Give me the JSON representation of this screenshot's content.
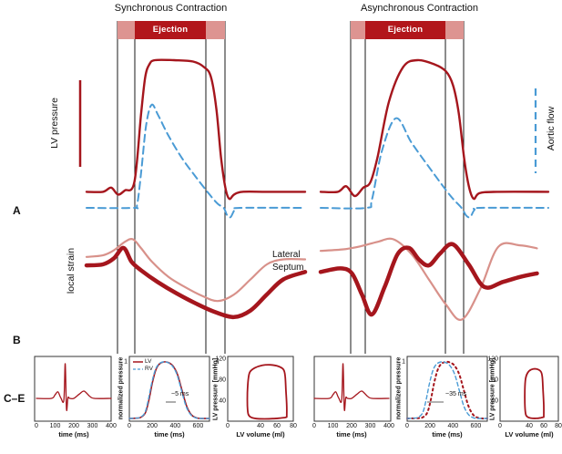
{
  "figure": {
    "panel_labels": {
      "a": "A",
      "b": "B",
      "ce": "C–E"
    },
    "columns": [
      {
        "title": "Synchronous Contraction",
        "ejection_label": "Ejection"
      },
      {
        "title": "Asynchronous Contraction",
        "ejection_label": "Ejection"
      }
    ],
    "left_axis_labels": {
      "lv_pressure": "LV pressure",
      "local_strain": "local strain"
    },
    "right_axis_label": "Aortic flow",
    "strain_region_labels": {
      "lateral": "Lateral",
      "septum": "Septum"
    },
    "colors": {
      "dark_red": "#a5161d",
      "pink": "#d8918a",
      "blue": "#4a9bd5",
      "ejection_dark": "#b2161b",
      "ejection_light": "#dd9491",
      "line_black": "#1a1a1a"
    }
  },
  "chart_data": [
    {
      "id": "sync_pressure_flow",
      "type": "line",
      "xlim": [
        0,
        800
      ],
      "ylim": [
        -0.15,
        1.1
      ],
      "timing_lines_ms": [
        113,
        177,
        437,
        507
      ],
      "series": [
        {
          "name": "LV pressure",
          "color": "#a5161d",
          "style": "solid",
          "x": [
            0,
            60,
            90,
            115,
            140,
            175,
            200,
            215,
            230,
            250,
            320,
            390,
            430,
            455,
            475,
            492,
            508,
            522,
            540,
            570,
            660,
            800
          ],
          "y": [
            0.05,
            0.05,
            0.08,
            0.03,
            0.06,
            0.12,
            0.62,
            0.88,
            0.97,
            1.0,
            1.0,
            0.99,
            0.95,
            0.88,
            0.65,
            0.3,
            0.08,
            0.0,
            0.03,
            0.05,
            0.05,
            0.05
          ]
        },
        {
          "name": "Aortic flow",
          "color": "#4a9bd5",
          "style": "dashed",
          "x": [
            0,
            170,
            185,
            200,
            218,
            238,
            262,
            300,
            350,
            400,
            450,
            480,
            502,
            514,
            527,
            542,
            562,
            800
          ],
          "y": [
            0,
            0,
            0.03,
            0.35,
            0.8,
            1.0,
            0.9,
            0.7,
            0.48,
            0.3,
            0.13,
            0.04,
            0,
            -0.07,
            -0.09,
            -0.02,
            0,
            0
          ]
        }
      ]
    },
    {
      "id": "sync_local_strain",
      "type": "line",
      "xlim": [
        0,
        800
      ],
      "ylim": [
        -1.2,
        0.6
      ],
      "series": [
        {
          "name": "Lateral",
          "color": "#d8918a",
          "style": "solid",
          "x": [
            0,
            60,
            100,
            140,
            170,
            200,
            240,
            300,
            360,
            420,
            480,
            540,
            600,
            660,
            720,
            800
          ],
          "y": [
            0.15,
            0.18,
            0.28,
            0.45,
            0.5,
            0.32,
            0.05,
            -0.25,
            -0.45,
            -0.62,
            -0.73,
            -0.6,
            -0.3,
            0.0,
            0.1,
            0.1
          ]
        },
        {
          "name": "Septum",
          "color": "#a5161d",
          "style": "solid",
          "x": [
            0,
            60,
            100,
            135,
            165,
            200,
            260,
            330,
            400,
            470,
            540,
            600,
            660,
            720,
            800
          ],
          "y": [
            -0.02,
            0.0,
            0.12,
            0.33,
            0.05,
            -0.12,
            -0.35,
            -0.58,
            -0.78,
            -0.95,
            -1.05,
            -0.92,
            -0.6,
            -0.3,
            -0.15
          ]
        }
      ]
    },
    {
      "id": "async_pressure_flow",
      "type": "line",
      "xlim": [
        0,
        800
      ],
      "ylim": [
        -0.15,
        1.1
      ],
      "timing_lines_ms": [
        112,
        163,
        445,
        509
      ],
      "series": [
        {
          "name": "LV pressure",
          "color": "#a5161d",
          "style": "solid",
          "x": [
            0,
            60,
            90,
            120,
            150,
            175,
            200,
            240,
            290,
            340,
            400,
            440,
            465,
            485,
            505,
            522,
            538,
            558,
            620,
            800
          ],
          "y": [
            0.05,
            0.05,
            0.09,
            0.02,
            0.08,
            0.12,
            0.3,
            0.7,
            0.95,
            1.0,
            0.97,
            0.92,
            0.82,
            0.62,
            0.28,
            0.08,
            0.0,
            0.04,
            0.05,
            0.05
          ]
        },
        {
          "name": "Aortic flow",
          "color": "#4a9bd5",
          "style": "dashed",
          "x": [
            0,
            160,
            180,
            215,
            265,
            320,
            390,
            455,
            495,
            510,
            525,
            540,
            560,
            800
          ],
          "y": [
            0,
            0,
            0.08,
            0.55,
            0.87,
            0.63,
            0.36,
            0.12,
            0.0,
            -0.07,
            -0.09,
            -0.02,
            0,
            0
          ]
        }
      ]
    },
    {
      "id": "async_local_strain",
      "type": "line",
      "xlim": [
        0,
        800
      ],
      "ylim": [
        -1.2,
        0.6
      ],
      "series": [
        {
          "name": "Lateral",
          "color": "#d8918a",
          "style": "solid",
          "x": [
            0,
            80,
            140,
            200,
            256,
            320,
            380,
            440,
            496,
            560,
            624,
            700,
            760
          ],
          "y": [
            0.27,
            0.3,
            0.36,
            0.45,
            0.5,
            0.2,
            -0.3,
            -0.8,
            -1.1,
            -0.5,
            0.35,
            0.38,
            0.32
          ]
        },
        {
          "name": "Septum",
          "color": "#a5161d",
          "style": "solid",
          "x": [
            0,
            70,
            110,
            145,
            180,
            225,
            270,
            310,
            345,
            380,
            420,
            465,
            520,
            575,
            640,
            700,
            760
          ],
          "y": [
            -0.15,
            -0.08,
            -0.18,
            -0.6,
            -1.0,
            -0.45,
            0.2,
            0.33,
            0.1,
            -0.02,
            0.22,
            0.4,
            0.0,
            -0.45,
            -0.35,
            -0.25,
            -0.18
          ]
        }
      ]
    },
    {
      "id": "ecg_sync",
      "type": "line",
      "xlabel": "time (ms)",
      "x_ticks": [
        0,
        100,
        200,
        300,
        400
      ],
      "xlim": [
        0,
        400
      ],
      "series": [
        {
          "color": "#a5161d",
          "style": "solid",
          "x": [
            0,
            80,
            100,
            115,
            130,
            147,
            154,
            161,
            169,
            178,
            200,
            230,
            255,
            285,
            310,
            400
          ],
          "y": [
            0,
            0,
            0.1,
            0.18,
            0.02,
            -0.05,
            0.95,
            -0.3,
            0.02,
            0,
            0,
            0.12,
            0.2,
            0.06,
            0,
            0
          ]
        }
      ]
    },
    {
      "id": "norm_pressure_sync",
      "type": "line",
      "xlabel": "time (ms)",
      "ylabel": "normalized pressure",
      "x_ticks": [
        0,
        200,
        400,
        600
      ],
      "y_ticks": [
        1
      ],
      "xlim": [
        0,
        700
      ],
      "ylim": [
        0,
        1
      ],
      "annotation": "~5 ms",
      "legend_position": "top-left",
      "series": [
        {
          "name": "LV",
          "color": "#a5161d",
          "style": "solid",
          "x": [
            0,
            60,
            100,
            140,
            170,
            200,
            230,
            260,
            300,
            340,
            380,
            420,
            460,
            500,
            540,
            580,
            620,
            700
          ],
          "y": [
            0,
            0.005,
            0.02,
            0.1,
            0.32,
            0.62,
            0.85,
            0.96,
            1.0,
            0.99,
            0.93,
            0.78,
            0.5,
            0.22,
            0.07,
            0.015,
            0,
            0
          ]
        },
        {
          "name": "RV",
          "color": "#4a9bd5",
          "style": "dashed",
          "x": [
            0,
            55,
            95,
            135,
            165,
            195,
            225,
            255,
            295,
            335,
            375,
            415,
            455,
            495,
            535,
            575,
            615,
            700
          ],
          "y": [
            0,
            0.005,
            0.02,
            0.1,
            0.32,
            0.62,
            0.85,
            0.96,
            1.0,
            0.99,
            0.93,
            0.78,
            0.5,
            0.22,
            0.07,
            0.015,
            0,
            0
          ]
        }
      ]
    },
    {
      "id": "pv_loop_sync",
      "type": "line",
      "xlabel": "LV volume (ml)",
      "ylabel": "LV pressure [mmHg]",
      "x_ticks": [
        0,
        40,
        60,
        80
      ],
      "y_ticks": [
        120,
        80,
        40
      ],
      "xlim": [
        0,
        80
      ],
      "ylim": [
        0,
        120
      ],
      "series": [
        {
          "color": "#a5161d",
          "style": "solid",
          "closed": true,
          "x": [
            72,
            72,
            71,
            70,
            68,
            62,
            52,
            42,
            33,
            27,
            25,
            24,
            24,
            25,
            28,
            35,
            45,
            55,
            64,
            70
          ],
          "y": [
            8,
            30,
            60,
            88,
            100,
            106,
            109,
            108,
            103,
            95,
            80,
            55,
            30,
            14,
            8,
            5,
            4.5,
            5,
            6,
            7
          ]
        }
      ]
    },
    {
      "id": "ecg_async",
      "type": "line",
      "xlabel": "time (ms)",
      "x_ticks": [
        0,
        100,
        200,
        300,
        400
      ],
      "xlim": [
        0,
        400
      ],
      "series": [
        {
          "color": "#a5161d",
          "style": "solid",
          "x": [
            0,
            80,
            100,
            115,
            130,
            147,
            154,
            161,
            169,
            178,
            200,
            230,
            255,
            285,
            310,
            400
          ],
          "y": [
            0,
            0,
            0.1,
            0.18,
            0.02,
            -0.05,
            0.95,
            -0.3,
            0.02,
            0,
            0,
            0.12,
            0.2,
            0.06,
            0,
            0
          ]
        }
      ]
    },
    {
      "id": "norm_pressure_async",
      "type": "line",
      "xlabel": "time (ms)",
      "ylabel": "normalized pressure",
      "x_ticks": [
        0,
        200,
        400,
        600
      ],
      "y_ticks": [
        1
      ],
      "xlim": [
        0,
        700
      ],
      "ylim": [
        0,
        1
      ],
      "annotation": "~35 ms",
      "series": [
        {
          "name": "LV",
          "color": "#a5161d",
          "style": "dotted",
          "x": [
            0,
            95,
            135,
            175,
            205,
            235,
            265,
            295,
            335,
            375,
            415,
            455,
            495,
            535,
            575,
            615,
            655,
            700
          ],
          "y": [
            0,
            0.005,
            0.02,
            0.1,
            0.32,
            0.62,
            0.85,
            0.96,
            1.0,
            0.99,
            0.93,
            0.78,
            0.5,
            0.22,
            0.07,
            0.015,
            0,
            0
          ]
        },
        {
          "name": "RV",
          "color": "#4a9bd5",
          "style": "dashed",
          "x": [
            0,
            55,
            95,
            135,
            165,
            195,
            225,
            255,
            295,
            335,
            375,
            415,
            455,
            495,
            535,
            575,
            615,
            700
          ],
          "y": [
            0,
            0.005,
            0.02,
            0.1,
            0.32,
            0.62,
            0.85,
            0.96,
            1.0,
            0.99,
            0.93,
            0.78,
            0.5,
            0.22,
            0.07,
            0.015,
            0,
            0
          ]
        }
      ]
    },
    {
      "id": "pv_loop_async",
      "type": "line",
      "xlabel": "LV volume (ml)",
      "ylabel": "LV pressure [mmHg]",
      "x_ticks": [
        0,
        40,
        60,
        80
      ],
      "y_ticks": [
        120,
        80,
        40
      ],
      "xlim": [
        0,
        80
      ],
      "ylim": [
        0,
        120
      ],
      "series": [
        {
          "color": "#a5161d",
          "style": "solid",
          "closed": true,
          "x": [
            60,
            60,
            59,
            58,
            56,
            50,
            43,
            38,
            35,
            34,
            34,
            35,
            37,
            42,
            50,
            56
          ],
          "y": [
            8,
            30,
            60,
            85,
            96,
            101,
            100,
            94,
            82,
            60,
            35,
            15,
            9,
            6,
            5.5,
            6.5
          ]
        }
      ]
    }
  ]
}
